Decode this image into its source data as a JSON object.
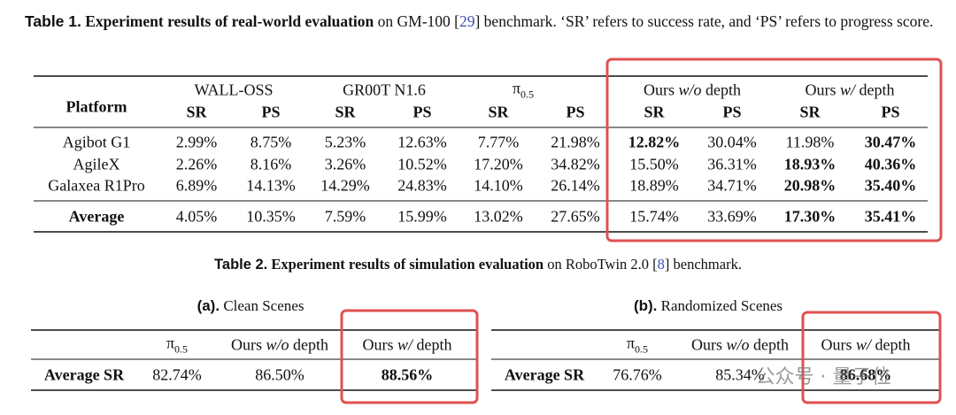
{
  "table1": {
    "caption": {
      "label": "Table 1.",
      "bold": "Experiment results of real-world evaluation",
      "text_a": "on GM-100 [",
      "ref": "29",
      "text_b": "] benchmark. ‘SR’ refers to success rate, and ‘PS’ refers to progress score."
    },
    "corner": "Platform",
    "groups": [
      {
        "text": "WALL-OSS"
      },
      {
        "text": "GR00T N1.6"
      },
      {
        "text": "π",
        "sub": "0.5"
      },
      {
        "text": "Ours",
        "em": "w/o",
        "suffix": "depth"
      },
      {
        "text": "Ours",
        "em": "w/",
        "suffix": "depth"
      }
    ],
    "subheaders": [
      "SR",
      "PS",
      "SR",
      "PS",
      "SR",
      "PS",
      "SR",
      "PS",
      "SR",
      "PS"
    ],
    "rows": [
      {
        "name": "Agibot G1",
        "cells": [
          "2.99%",
          "8.75%",
          "5.23%",
          "12.63%",
          "7.77%",
          "21.98%",
          "12.82%",
          "30.04%",
          "11.98%",
          "30.47%"
        ],
        "bold": [
          6,
          9
        ]
      },
      {
        "name": "AgileX",
        "cells": [
          "2.26%",
          "8.16%",
          "3.26%",
          "10.52%",
          "17.20%",
          "34.82%",
          "15.50%",
          "36.31%",
          "18.93%",
          "40.36%"
        ],
        "bold": [
          8,
          9
        ]
      },
      {
        "name": "Galaxea R1Pro",
        "cells": [
          "6.89%",
          "14.13%",
          "14.29%",
          "24.83%",
          "14.10%",
          "26.14%",
          "18.89%",
          "34.71%",
          "20.98%",
          "35.40%"
        ],
        "bold": [
          8,
          9
        ]
      }
    ],
    "average": {
      "name": "Average",
      "cells": [
        "4.05%",
        "10.35%",
        "7.59%",
        "15.99%",
        "13.02%",
        "27.65%",
        "15.74%",
        "33.69%",
        "17.30%",
        "35.41%"
      ],
      "bold": [
        8,
        9
      ]
    }
  },
  "table2": {
    "caption": {
      "label": "Table 2.",
      "bold": "Experiment results of simulation evaluation",
      "text_a": "on RoboTwin 2.0 [",
      "ref": "8",
      "text_b": "] benchmark."
    },
    "panels": [
      {
        "label": "(a).",
        "title": "Clean Scenes",
        "headers": [
          {
            "text": "π",
            "sub": "0.5"
          },
          {
            "text": "Ours",
            "em": "w/o",
            "suffix": "depth"
          },
          {
            "text": "Ours",
            "em": "w/",
            "suffix": "depth"
          }
        ],
        "row": {
          "name": "Average SR",
          "cells": [
            "82.74%",
            "86.50%",
            "88.56%"
          ],
          "bold": [
            2
          ]
        }
      },
      {
        "label": "(b).",
        "title": "Randomized Scenes",
        "headers": [
          {
            "text": "π",
            "sub": "0.5"
          },
          {
            "text": "Ours",
            "em": "w/o",
            "suffix": "depth"
          },
          {
            "text": "Ours",
            "em": "w/",
            "suffix": "depth"
          }
        ],
        "row": {
          "name": "Average SR",
          "cells": [
            "76.76%",
            "85.34%",
            "86.68%"
          ],
          "bold": [
            2
          ]
        }
      }
    ]
  },
  "watermark": "公众号 · 量子位"
}
